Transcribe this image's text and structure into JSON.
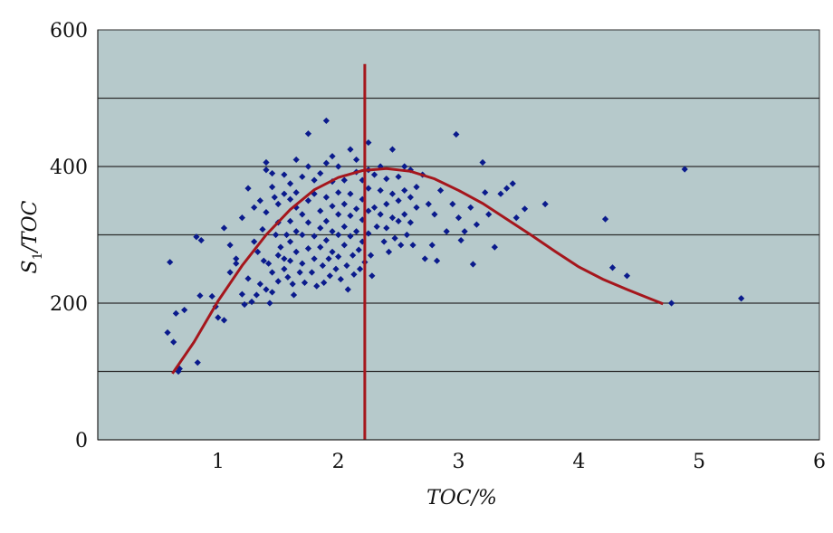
{
  "chart_data": {
    "type": "scatter",
    "title": "",
    "xlabel": "TOC/%",
    "ylabel_parts": {
      "symbol": "S",
      "subscript": "1",
      "rest": "/TOC"
    },
    "xlim": [
      0,
      6
    ],
    "ylim": [
      0,
      600
    ],
    "xticks": [
      1,
      2,
      3,
      4,
      5,
      6
    ],
    "yticks": [
      0,
      200,
      400,
      600
    ],
    "ygrid": [
      100,
      200,
      300,
      400,
      500
    ],
    "colors": {
      "plot_bg": "#b6c9cb",
      "points": "#0a1a8c",
      "curve": "#a5161c",
      "vline": "#a5161c",
      "grid": "#2c2c2c"
    },
    "vertical_line": {
      "x": 2.22,
      "y_range": [
        0,
        550
      ]
    },
    "trend_curve": [
      [
        0.62,
        97
      ],
      [
        0.8,
        143
      ],
      [
        1.0,
        203
      ],
      [
        1.2,
        255
      ],
      [
        1.4,
        300
      ],
      [
        1.6,
        337
      ],
      [
        1.8,
        366
      ],
      [
        2.0,
        384
      ],
      [
        2.2,
        394
      ],
      [
        2.4,
        397
      ],
      [
        2.6,
        393
      ],
      [
        2.8,
        382
      ],
      [
        3.0,
        365
      ],
      [
        3.2,
        346
      ],
      [
        3.4,
        323
      ],
      [
        3.6,
        300
      ],
      [
        3.8,
        276
      ],
      [
        4.0,
        253
      ],
      [
        4.2,
        235
      ],
      [
        4.4,
        220
      ],
      [
        4.6,
        206
      ],
      [
        4.7,
        199
      ]
    ],
    "points": [
      [
        0.58,
        157
      ],
      [
        0.6,
        260
      ],
      [
        0.63,
        143
      ],
      [
        0.65,
        185
      ],
      [
        0.67,
        100
      ],
      [
        0.68,
        104
      ],
      [
        0.72,
        190
      ],
      [
        0.82,
        297
      ],
      [
        0.83,
        113
      ],
      [
        0.85,
        211
      ],
      [
        0.86,
        292
      ],
      [
        0.95,
        210
      ],
      [
        0.98,
        195
      ],
      [
        1.0,
        179
      ],
      [
        1.05,
        310
      ],
      [
        1.05,
        175
      ],
      [
        1.1,
        285
      ],
      [
        1.1,
        245
      ],
      [
        1.15,
        265
      ],
      [
        1.15,
        258
      ],
      [
        1.2,
        325
      ],
      [
        1.2,
        213
      ],
      [
        1.22,
        198
      ],
      [
        1.25,
        368
      ],
      [
        1.25,
        236
      ],
      [
        1.28,
        202
      ],
      [
        1.3,
        340
      ],
      [
        1.3,
        290
      ],
      [
        1.32,
        212
      ],
      [
        1.33,
        275
      ],
      [
        1.35,
        350
      ],
      [
        1.35,
        228
      ],
      [
        1.37,
        308
      ],
      [
        1.38,
        262
      ],
      [
        1.4,
        406
      ],
      [
        1.4,
        395
      ],
      [
        1.4,
        333
      ],
      [
        1.4,
        220
      ],
      [
        1.42,
        258
      ],
      [
        1.43,
        200
      ],
      [
        1.45,
        390
      ],
      [
        1.45,
        370
      ],
      [
        1.45,
        245
      ],
      [
        1.45,
        216
      ],
      [
        1.47,
        355
      ],
      [
        1.48,
        300
      ],
      [
        1.5,
        345
      ],
      [
        1.5,
        318
      ],
      [
        1.5,
        270
      ],
      [
        1.5,
        232
      ],
      [
        1.52,
        282
      ],
      [
        1.55,
        388
      ],
      [
        1.55,
        360
      ],
      [
        1.55,
        265
      ],
      [
        1.55,
        250
      ],
      [
        1.57,
        300
      ],
      [
        1.58,
        238
      ],
      [
        1.6,
        375
      ],
      [
        1.6,
        352
      ],
      [
        1.6,
        320
      ],
      [
        1.6,
        290
      ],
      [
        1.6,
        262
      ],
      [
        1.62,
        228
      ],
      [
        1.63,
        212
      ],
      [
        1.65,
        410
      ],
      [
        1.65,
        362
      ],
      [
        1.65,
        340
      ],
      [
        1.65,
        305
      ],
      [
        1.65,
        275
      ],
      [
        1.68,
        245
      ],
      [
        1.7,
        385
      ],
      [
        1.7,
        330
      ],
      [
        1.7,
        300
      ],
      [
        1.7,
        258
      ],
      [
        1.72,
        230
      ],
      [
        1.75,
        448
      ],
      [
        1.75,
        400
      ],
      [
        1.75,
        350
      ],
      [
        1.75,
        318
      ],
      [
        1.75,
        280
      ],
      [
        1.78,
        245
      ],
      [
        1.8,
        380
      ],
      [
        1.8,
        360
      ],
      [
        1.8,
        298
      ],
      [
        1.8,
        265
      ],
      [
        1.82,
        225
      ],
      [
        1.85,
        390
      ],
      [
        1.85,
        335
      ],
      [
        1.85,
        310
      ],
      [
        1.85,
        282
      ],
      [
        1.87,
        255
      ],
      [
        1.88,
        230
      ],
      [
        1.9,
        467
      ],
      [
        1.9,
        405
      ],
      [
        1.9,
        355
      ],
      [
        1.9,
        320
      ],
      [
        1.9,
        292
      ],
      [
        1.92,
        265
      ],
      [
        1.93,
        240
      ],
      [
        1.95,
        415
      ],
      [
        1.95,
        378
      ],
      [
        1.95,
        342
      ],
      [
        1.95,
        305
      ],
      [
        1.95,
        275
      ],
      [
        1.98,
        250
      ],
      [
        2.0,
        400
      ],
      [
        2.0,
        362
      ],
      [
        2.0,
        330
      ],
      [
        2.0,
        300
      ],
      [
        2.0,
        268
      ],
      [
        2.02,
        235
      ],
      [
        2.05,
        380
      ],
      [
        2.05,
        345
      ],
      [
        2.05,
        312
      ],
      [
        2.05,
        285
      ],
      [
        2.07,
        255
      ],
      [
        2.08,
        220
      ],
      [
        2.1,
        425
      ],
      [
        2.1,
        360
      ],
      [
        2.1,
        328
      ],
      [
        2.1,
        298
      ],
      [
        2.12,
        270
      ],
      [
        2.13,
        242
      ],
      [
        2.15,
        410
      ],
      [
        2.15,
        392
      ],
      [
        2.15,
        338
      ],
      [
        2.15,
        305
      ],
      [
        2.17,
        278
      ],
      [
        2.18,
        250
      ],
      [
        2.2,
        380
      ],
      [
        2.2,
        352
      ],
      [
        2.2,
        322
      ],
      [
        2.2,
        290
      ],
      [
        2.22,
        260
      ],
      [
        2.25,
        435
      ],
      [
        2.25,
        395
      ],
      [
        2.25,
        368
      ],
      [
        2.25,
        335
      ],
      [
        2.25,
        302
      ],
      [
        2.27,
        270
      ],
      [
        2.28,
        240
      ],
      [
        2.3,
        388
      ],
      [
        2.3,
        340
      ],
      [
        2.32,
        312
      ],
      [
        2.35,
        400
      ],
      [
        2.35,
        365
      ],
      [
        2.35,
        330
      ],
      [
        2.38,
        290
      ],
      [
        2.4,
        382
      ],
      [
        2.4,
        345
      ],
      [
        2.4,
        310
      ],
      [
        2.42,
        275
      ],
      [
        2.45,
        425
      ],
      [
        2.45,
        360
      ],
      [
        2.45,
        325
      ],
      [
        2.47,
        295
      ],
      [
        2.5,
        385
      ],
      [
        2.5,
        350
      ],
      [
        2.5,
        320
      ],
      [
        2.52,
        285
      ],
      [
        2.55,
        400
      ],
      [
        2.55,
        365
      ],
      [
        2.55,
        330
      ],
      [
        2.57,
        300
      ],
      [
        2.6,
        395
      ],
      [
        2.6,
        355
      ],
      [
        2.6,
        318
      ],
      [
        2.62,
        285
      ],
      [
        2.65,
        370
      ],
      [
        2.65,
        340
      ],
      [
        2.7,
        388
      ],
      [
        2.72,
        265
      ],
      [
        2.75,
        345
      ],
      [
        2.78,
        285
      ],
      [
        2.8,
        330
      ],
      [
        2.82,
        262
      ],
      [
        2.85,
        365
      ],
      [
        2.9,
        305
      ],
      [
        2.95,
        345
      ],
      [
        2.98,
        447
      ],
      [
        3.0,
        325
      ],
      [
        3.02,
        292
      ],
      [
        3.05,
        305
      ],
      [
        3.1,
        340
      ],
      [
        3.12,
        257
      ],
      [
        3.15,
        315
      ],
      [
        3.2,
        406
      ],
      [
        3.22,
        362
      ],
      [
        3.25,
        330
      ],
      [
        3.3,
        282
      ],
      [
        3.35,
        360
      ],
      [
        3.4,
        368
      ],
      [
        3.45,
        375
      ],
      [
        3.48,
        325
      ],
      [
        3.55,
        338
      ],
      [
        3.72,
        345
      ],
      [
        4.22,
        323
      ],
      [
        4.28,
        252
      ],
      [
        4.4,
        240
      ],
      [
        4.77,
        200
      ],
      [
        4.88,
        396
      ],
      [
        5.35,
        207
      ]
    ]
  }
}
